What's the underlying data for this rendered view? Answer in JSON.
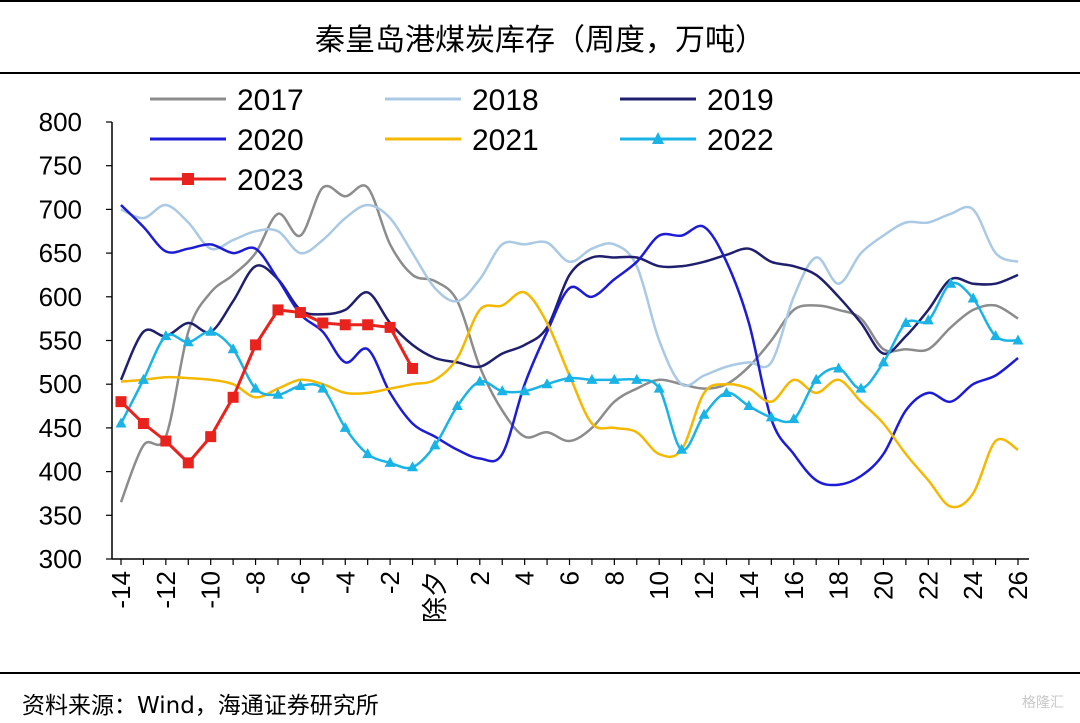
{
  "title": "秦皇岛港煤炭库存（周度，万吨）",
  "source": "资料来源：Wind，海通证券研究所",
  "watermark": "格隆汇",
  "chart_data": {
    "type": "line",
    "ylim": [
      300,
      800
    ],
    "yticks": [
      300,
      350,
      400,
      450,
      500,
      550,
      600,
      650,
      700,
      750,
      800
    ],
    "xlim": [
      -14,
      26
    ],
    "x_tick_labels": [
      "-14",
      "-12",
      "-10",
      "-8",
      "-6",
      "-4",
      "-2",
      "除夕",
      "2",
      "4",
      "6",
      "8",
      "10",
      "12",
      "14",
      "16",
      "18",
      "20",
      "22",
      "24",
      "26"
    ],
    "x_tick_positions": [
      -14,
      -12,
      -10,
      -8,
      -6,
      -4,
      -2,
      0,
      2,
      4,
      6,
      8,
      10,
      12,
      14,
      16,
      18,
      20,
      22,
      24,
      26
    ],
    "legend_position": "top",
    "series": [
      {
        "name": "2017",
        "color": "#8c8c8c",
        "marker": "none",
        "x": [
          -14,
          -13,
          -12,
          -11,
          -10,
          -9,
          -8,
          -7,
          -6,
          -5,
          -4,
          -3,
          -2,
          -1,
          0,
          1,
          2,
          3,
          4,
          5,
          6,
          7,
          8,
          9,
          10,
          11,
          12,
          13,
          14,
          15,
          16,
          17,
          18,
          19,
          20,
          21,
          22,
          23,
          24,
          25,
          26
        ],
        "y": [
          365,
          430,
          440,
          560,
          605,
          625,
          650,
          695,
          670,
          725,
          715,
          725,
          660,
          625,
          618,
          595,
          520,
          470,
          440,
          445,
          435,
          450,
          480,
          495,
          505,
          500,
          495,
          500,
          520,
          550,
          585,
          590,
          585,
          575,
          540,
          540,
          540,
          565,
          585,
          590,
          575
        ]
      },
      {
        "name": "2018",
        "color": "#a9c9e4",
        "marker": "none",
        "x": [
          -14,
          -13,
          -12,
          -11,
          -10,
          -9,
          -8,
          -7,
          -6,
          -5,
          -4,
          -3,
          -2,
          -1,
          0,
          1,
          2,
          3,
          4,
          5,
          6,
          7,
          8,
          9,
          10,
          11,
          12,
          13,
          14,
          15,
          16,
          17,
          18,
          19,
          20,
          21,
          22,
          23,
          24,
          25,
          26
        ],
        "y": [
          700,
          690,
          705,
          685,
          655,
          665,
          675,
          675,
          650,
          665,
          690,
          705,
          690,
          650,
          610,
          595,
          620,
          660,
          660,
          662,
          640,
          655,
          660,
          635,
          550,
          500,
          510,
          520,
          525,
          525,
          600,
          645,
          615,
          650,
          670,
          685,
          685,
          695,
          700,
          650,
          640
        ]
      },
      {
        "name": "2019",
        "color": "#1f1f6e",
        "marker": "none",
        "x": [
          -14,
          -13,
          -12,
          -11,
          -10,
          -9,
          -8,
          -7,
          -6,
          -5,
          -4,
          -3,
          -2,
          -1,
          0,
          1,
          2,
          3,
          4,
          5,
          6,
          7,
          8,
          9,
          10,
          11,
          12,
          13,
          14,
          15,
          16,
          17,
          18,
          19,
          20,
          21,
          22,
          23,
          24,
          25,
          26
        ],
        "y": [
          505,
          560,
          555,
          570,
          560,
          595,
          635,
          620,
          585,
          580,
          585,
          605,
          570,
          545,
          530,
          525,
          520,
          535,
          545,
          565,
          625,
          645,
          645,
          645,
          635,
          635,
          640,
          648,
          655,
          640,
          635,
          625,
          600,
          570,
          535,
          555,
          585,
          620,
          615,
          615,
          625
        ]
      },
      {
        "name": "2020",
        "color": "#1c1cd6",
        "marker": "none",
        "x": [
          -14,
          -13,
          -12,
          -11,
          -10,
          -9,
          -8,
          -7,
          -6,
          -5,
          -4,
          -3,
          -2,
          -1,
          0,
          1,
          2,
          3,
          4,
          5,
          6,
          7,
          8,
          9,
          10,
          11,
          12,
          13,
          14,
          15,
          16,
          17,
          18,
          19,
          20,
          21,
          22,
          23,
          24,
          25,
          26
        ],
        "y": [
          705,
          680,
          652,
          655,
          660,
          650,
          655,
          620,
          580,
          560,
          525,
          540,
          490,
          455,
          440,
          425,
          415,
          420,
          500,
          560,
          610,
          600,
          620,
          640,
          670,
          670,
          680,
          640,
          570,
          460,
          420,
          390,
          385,
          395,
          420,
          470,
          490,
          480,
          500,
          510,
          530
        ]
      },
      {
        "name": "2021",
        "color": "#f5b800",
        "marker": "none",
        "x": [
          -14,
          -13,
          -12,
          -11,
          -10,
          -9,
          -8,
          -7,
          -6,
          -5,
          -4,
          -3,
          -2,
          -1,
          0,
          1,
          2,
          3,
          4,
          5,
          6,
          7,
          8,
          9,
          10,
          11,
          12,
          13,
          14,
          15,
          16,
          17,
          18,
          19,
          20,
          21,
          22,
          23,
          24,
          25,
          26
        ],
        "y": [
          503,
          505,
          508,
          507,
          505,
          500,
          485,
          495,
          505,
          500,
          490,
          490,
          495,
          500,
          505,
          530,
          585,
          590,
          605,
          570,
          510,
          455,
          450,
          445,
          420,
          425,
          490,
          500,
          495,
          480,
          505,
          490,
          505,
          480,
          455,
          420,
          390,
          360,
          375,
          435,
          425
        ]
      },
      {
        "name": "2022",
        "color": "#19b3e6",
        "marker": "triangle",
        "x": [
          -14,
          -13,
          -12,
          -11,
          -10,
          -9,
          -8,
          -7,
          -6,
          -5,
          -4,
          -3,
          -2,
          -1,
          0,
          1,
          2,
          3,
          4,
          5,
          6,
          7,
          8,
          9,
          10,
          11,
          12,
          13,
          14,
          15,
          16,
          17,
          18,
          19,
          20,
          21,
          22,
          23,
          24,
          25,
          26
        ],
        "y": [
          455,
          505,
          555,
          548,
          560,
          540,
          495,
          488,
          498,
          495,
          450,
          420,
          410,
          405,
          430,
          475,
          503,
          492,
          492,
          500,
          507,
          505,
          505,
          505,
          495,
          425,
          465,
          490,
          475,
          462,
          460,
          505,
          518,
          495,
          525,
          570,
          573,
          615,
          598,
          555,
          550
        ]
      },
      {
        "name": "2023",
        "color": "#e8231e",
        "marker": "square",
        "x": [
          -14,
          -13,
          -12,
          -11,
          -10,
          -9,
          -8,
          -7,
          -6,
          -5,
          -4,
          -3,
          -2,
          -1
        ],
        "y": [
          480,
          455,
          435,
          410,
          440,
          485,
          545,
          585,
          582,
          570,
          568,
          568,
          565,
          518
        ]
      }
    ]
  }
}
